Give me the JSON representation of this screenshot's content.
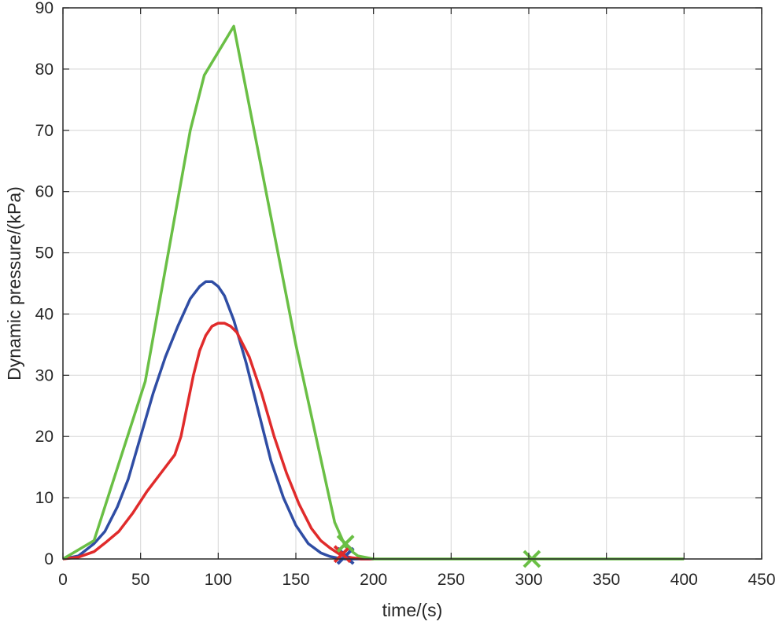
{
  "chart_data": {
    "type": "line",
    "xlabel": "time/(s)",
    "ylabel": "Dynamic pressure/(kPa)",
    "xlim": [
      0,
      450
    ],
    "ylim": [
      0,
      90
    ],
    "xticks": [
      "0",
      "50",
      "100",
      "150",
      "200",
      "250",
      "300",
      "350",
      "400",
      "450"
    ],
    "yticks": [
      "0",
      "10",
      "20",
      "30",
      "40",
      "50",
      "60",
      "70",
      "80",
      "90"
    ],
    "grid": true,
    "series": [
      {
        "color": "#2f4da4",
        "x": [
          0,
          10,
          20,
          27,
          35,
          42,
          50,
          58,
          66,
          74,
          82,
          88,
          92,
          96,
          100,
          104,
          110,
          118,
          126,
          134,
          142,
          150,
          158,
          166,
          172,
          178,
          182,
          186,
          192,
          200
        ],
        "y": [
          0,
          0.5,
          2.5,
          4.5,
          8.5,
          13,
          20,
          27,
          33,
          38,
          42.5,
          44.5,
          45.3,
          45.3,
          44.5,
          43,
          39,
          32,
          24,
          16,
          10,
          5.5,
          2.5,
          1,
          0.4,
          0.1,
          0,
          0,
          0,
          0
        ],
        "end_marker": {
          "x": 182,
          "y": 0.5,
          "shape": "x"
        }
      },
      {
        "color": "#e02b2b",
        "x": [
          0,
          10,
          20,
          28,
          36,
          45,
          54,
          63,
          72,
          76,
          80,
          84,
          88,
          92,
          96,
          100,
          104,
          108,
          112,
          120,
          128,
          136,
          144,
          152,
          160,
          166,
          172,
          178,
          182,
          186,
          192,
          200
        ],
        "y": [
          0,
          0.3,
          1.2,
          2.8,
          4.5,
          7.5,
          11,
          14,
          17,
          20,
          25,
          30,
          34,
          36.5,
          38,
          38.5,
          38.5,
          38,
          37,
          33,
          27,
          20,
          14,
          9,
          5,
          3,
          1.8,
          0.8,
          0.4,
          0.2,
          0,
          0
        ],
        "end_marker": {
          "x": 180,
          "y": 0.8,
          "shape": "x"
        }
      },
      {
        "color": "#6abf45",
        "x": [
          0,
          20,
          53,
          82,
          91,
          110,
          150,
          175,
          182,
          190,
          200,
          300,
          400
        ],
        "y": [
          0,
          3,
          29,
          70,
          79,
          87,
          35,
          6,
          2,
          0.5,
          0,
          0,
          0
        ],
        "end_marker": {
          "x": 182,
          "y": 2.5,
          "shape": "x"
        },
        "extra_marker": {
          "x": 302,
          "y": 0,
          "shape": "x"
        }
      }
    ]
  }
}
